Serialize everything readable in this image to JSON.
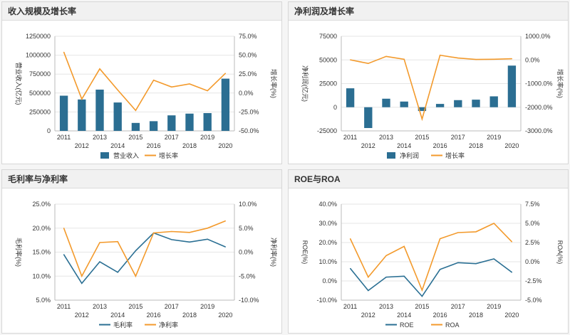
{
  "colors": {
    "bar": "#2b6e92",
    "line_orange": "#f39a2c",
    "line_blue": "#2a6f93",
    "grid": "#e6e6e6",
    "axis_text": "#333333"
  },
  "chart_data": [
    {
      "id": "c1",
      "type": "bar+line",
      "title": "收入规模及增长率",
      "categories": [
        "2011",
        "2012",
        "2013",
        "2014",
        "2015",
        "2016",
        "2017",
        "2018",
        "2019",
        "2020"
      ],
      "series": [
        {
          "name": "营业收入",
          "type": "bar",
          "axis": "left",
          "values": [
            465000,
            415000,
            545000,
            375000,
            105000,
            128000,
            205000,
            228000,
            235000,
            690000
          ]
        },
        {
          "name": "增长率",
          "type": "line",
          "axis": "right",
          "values": [
            54,
            -8,
            32,
            4,
            -23,
            17,
            8,
            12,
            3,
            26
          ]
        }
      ],
      "ylabel_left": "营业收入(亿元)",
      "ylabel_right": "增长率(%)",
      "yticks_left": [
        "0",
        "250000",
        "500000",
        "750000",
        "1000000",
        "1250000"
      ],
      "ylim_left": [
        0,
        1250000
      ],
      "yticks_right": [
        "-50.0%",
        "-25.0%",
        "0.0%",
        "25.0%",
        "50.0%",
        "75.0%"
      ],
      "ylim_right": [
        -50,
        75
      ],
      "legend": [
        "营业收入",
        "增长率"
      ]
    },
    {
      "id": "c2",
      "type": "bar+line",
      "title": "净利润及增长率",
      "categories": [
        "2011",
        "2012",
        "2013",
        "2014",
        "2015",
        "2016",
        "2017",
        "2018",
        "2019",
        "2020"
      ],
      "series": [
        {
          "name": "净利润",
          "type": "bar",
          "axis": "left",
          "values": [
            20000,
            -22000,
            9000,
            6000,
            -4000,
            3500,
            7500,
            8000,
            11500,
            44000
          ]
        },
        {
          "name": "增长率",
          "type": "line",
          "axis": "right",
          "values": [
            5,
            -150,
            150,
            30,
            -2500,
            200,
            80,
            20,
            30,
            50
          ]
        }
      ],
      "ylabel_left": "净利润(亿元)",
      "ylabel_right": "增长率(%)",
      "yticks_left": [
        "-25000",
        "0",
        "25000",
        "50000",
        "75000"
      ],
      "ylim_left": [
        -25000,
        75000
      ],
      "yticks_right": [
        "-3000.0%",
        "-2000.0%",
        "-1000.0%",
        "0.0%",
        "1000.0%"
      ],
      "ylim_right": [
        -3000,
        1000
      ],
      "legend": [
        "净利润",
        "增长率"
      ]
    },
    {
      "id": "c3",
      "type": "line",
      "title": "毛利率与净利率",
      "categories": [
        "2011",
        "2012",
        "2013",
        "2014",
        "2015",
        "2016",
        "2017",
        "2018",
        "2019",
        "2020"
      ],
      "series": [
        {
          "name": "毛利率",
          "type": "line",
          "axis": "left",
          "values": [
            14.5,
            8.5,
            13,
            10.8,
            15.3,
            19,
            17.6,
            17.1,
            17.7,
            16.1
          ]
        },
        {
          "name": "净利率",
          "type": "line",
          "axis": "right",
          "values": [
            5,
            -5,
            2,
            2.2,
            -5,
            4,
            4.3,
            4.1,
            5,
            6.5
          ]
        }
      ],
      "ylabel_left": "毛利率(%)",
      "ylabel_right": "净利率(%)",
      "yticks_left": [
        "5.0%",
        "10.0%",
        "15.0%",
        "20.0%",
        "25.0%"
      ],
      "ylim_left": [
        5,
        25
      ],
      "yticks_right": [
        "-10.0%",
        "-5.0%",
        "0.0%",
        "5.0%",
        "10.0%"
      ],
      "ylim_right": [
        -10,
        10
      ],
      "legend": [
        "毛利率",
        "净利率"
      ]
    },
    {
      "id": "c4",
      "type": "line",
      "title": "ROE与ROA",
      "categories": [
        "2011",
        "2012",
        "2013",
        "2014",
        "2015",
        "2016",
        "2017",
        "2018",
        "2019",
        "2020"
      ],
      "series": [
        {
          "name": "ROE",
          "type": "line",
          "axis": "left",
          "values": [
            6.5,
            -5,
            2,
            2.5,
            -8,
            6,
            9.5,
            9,
            11.5,
            4.5
          ]
        },
        {
          "name": "ROA",
          "type": "line",
          "axis": "right",
          "values": [
            3,
            -2,
            0.8,
            2,
            -3.7,
            3,
            3.8,
            3.9,
            5,
            2.6
          ]
        }
      ],
      "ylabel_left": "ROE(%)",
      "ylabel_right": "ROA(%)",
      "yticks_left": [
        "-10.0%",
        "0.0%",
        "10.0%",
        "20.0%",
        "30.0%",
        "40.0%"
      ],
      "ylim_left": [
        -10,
        40
      ],
      "yticks_right": [
        "-5.0%",
        "-2.5%",
        "0.0%",
        "2.5%",
        "5.0%",
        "7.5%"
      ],
      "ylim_right": [
        -5,
        7.5
      ],
      "legend": [
        "ROE",
        "ROA"
      ]
    }
  ]
}
